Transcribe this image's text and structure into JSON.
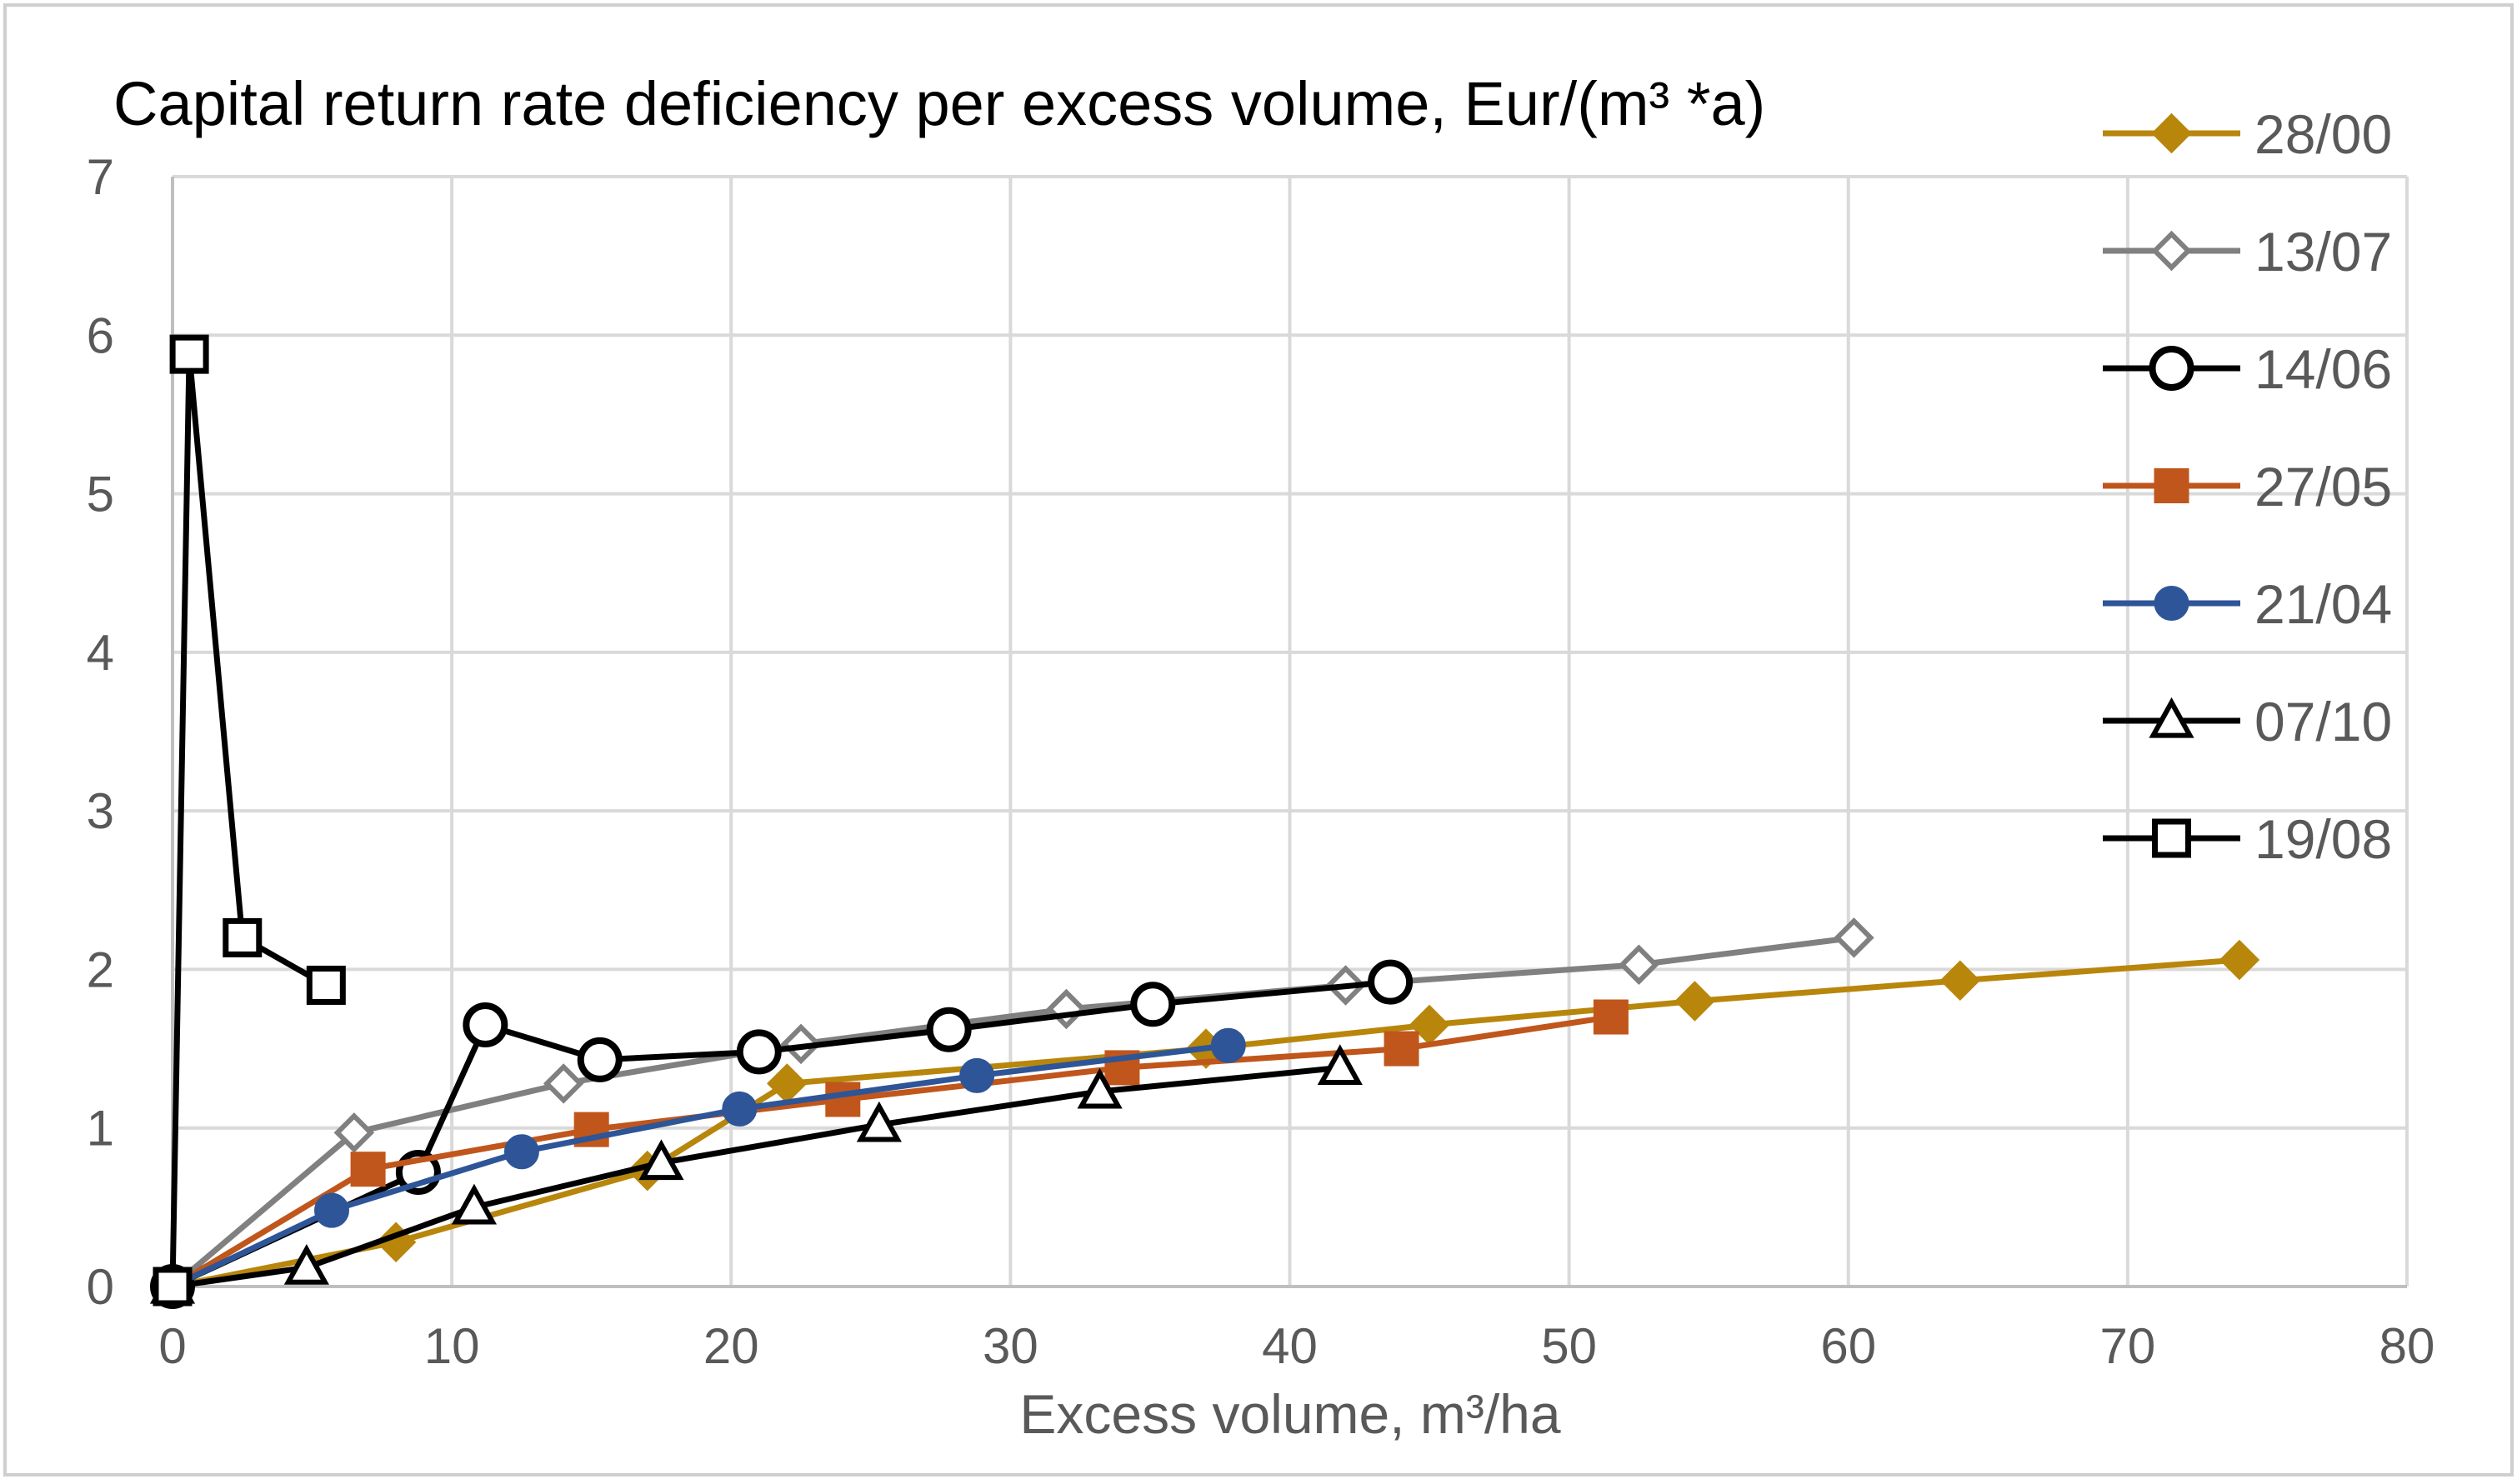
{
  "chart_data": {
    "type": "scatter",
    "title": "Capital return rate deficiency per excess volume,  Eur/(m³ *a)",
    "xlabel": "Excess volume, m³/ha",
    "ylabel": "",
    "xlim": [
      0,
      80
    ],
    "ylim": [
      0,
      7
    ],
    "xticks": [
      "0",
      "10",
      "20",
      "30",
      "40",
      "50",
      "60",
      "70",
      "80"
    ],
    "yticks": [
      "0",
      "1",
      "2",
      "3",
      "4",
      "5",
      "6",
      "7"
    ],
    "grid": true,
    "legend_position": "right",
    "series": [
      {
        "name": "28/00",
        "color": "#b8860b",
        "marker": "diamond-filled",
        "points": [
          [
            0,
            0
          ],
          [
            8,
            0.28
          ],
          [
            17,
            0.73
          ],
          [
            22,
            1.28
          ],
          [
            37,
            1.5
          ],
          [
            45,
            1.65
          ],
          [
            54.5,
            1.8
          ],
          [
            64,
            1.93
          ],
          [
            74,
            2.06
          ]
        ]
      },
      {
        "name": "13/07",
        "color": "#808080",
        "marker": "diamond-open",
        "points": [
          [
            0,
            0
          ],
          [
            6.5,
            0.97
          ],
          [
            14,
            1.28
          ],
          [
            22.5,
            1.53
          ],
          [
            32,
            1.75
          ],
          [
            42,
            1.9
          ],
          [
            52.5,
            2.03
          ],
          [
            60.2,
            2.2
          ]
        ]
      },
      {
        "name": "14/06",
        "color": "#000000",
        "marker": "circle-open",
        "points": [
          [
            0,
            0
          ],
          [
            8.8,
            0.72
          ],
          [
            11.2,
            1.65
          ],
          [
            15.3,
            1.43
          ],
          [
            21,
            1.48
          ],
          [
            27.8,
            1.62
          ],
          [
            35.1,
            1.78
          ],
          [
            43.6,
            1.92
          ]
        ]
      },
      {
        "name": "27/05",
        "color": "#c0561b",
        "marker": "square-filled",
        "points": [
          [
            0,
            0
          ],
          [
            7,
            0.74
          ],
          [
            15,
            0.99
          ],
          [
            24,
            1.18
          ],
          [
            34,
            1.38
          ],
          [
            44,
            1.5
          ],
          [
            51.5,
            1.7
          ]
        ]
      },
      {
        "name": "21/04",
        "color": "#2e5597",
        "marker": "circle-filled",
        "points": [
          [
            0,
            0
          ],
          [
            5.7,
            0.48
          ],
          [
            12.5,
            0.85
          ],
          [
            20.3,
            1.12
          ],
          [
            28.8,
            1.33
          ],
          [
            37.8,
            1.52
          ]
        ]
      },
      {
        "name": "07/10",
        "color": "#000000",
        "marker": "triangle-open",
        "points": [
          [
            0,
            0
          ],
          [
            4.8,
            0.12
          ],
          [
            10.8,
            0.5
          ],
          [
            17.5,
            0.78
          ],
          [
            25.3,
            1.02
          ],
          [
            33.2,
            1.23
          ],
          [
            41.8,
            1.38
          ]
        ]
      },
      {
        "name": "19/08",
        "color": "#000000",
        "marker": "square-open",
        "points": [
          [
            0,
            0
          ],
          [
            0.6,
            5.88
          ],
          [
            2.5,
            2.2
          ],
          [
            5.5,
            1.9
          ]
        ]
      }
    ]
  }
}
